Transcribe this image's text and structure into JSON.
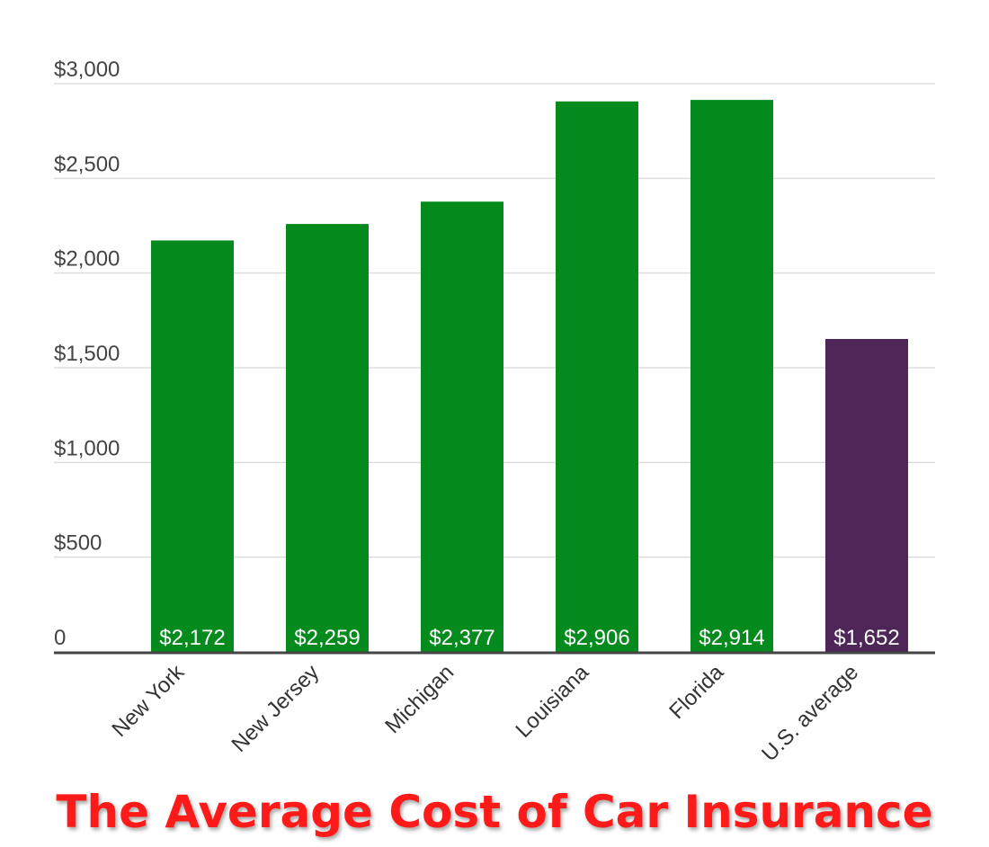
{
  "chart_data": {
    "type": "bar",
    "title": "The Average Cost of Car Insurance",
    "categories": [
      "New York",
      "New Jersey",
      "Michigan",
      "Louisiana",
      "Florida",
      "U.S. average"
    ],
    "values": [
      2172,
      2259,
      2377,
      2906,
      2914,
      1652
    ],
    "value_labels": [
      "$2,172",
      "$2,259",
      "$2,377",
      "$2,906",
      "$2,914",
      "$1,652"
    ],
    "bar_colors": [
      "#058a1e",
      "#058a1e",
      "#058a1e",
      "#058a1e",
      "#058a1e",
      "#4e2658"
    ],
    "ylim": [
      0,
      3000
    ],
    "yticks": [
      0,
      500,
      1000,
      1500,
      2000,
      2500,
      3000
    ],
    "ytick_labels": [
      "0",
      "$500",
      "$1,000",
      "$1,500",
      "$2,000",
      "$2,500",
      "$3,000"
    ],
    "xlabel": "",
    "ylabel": "",
    "grid": true,
    "legend": "none",
    "colors": {
      "gridline": "#dddddd",
      "baseline": "#444444",
      "title": "#ff1a1a"
    }
  }
}
